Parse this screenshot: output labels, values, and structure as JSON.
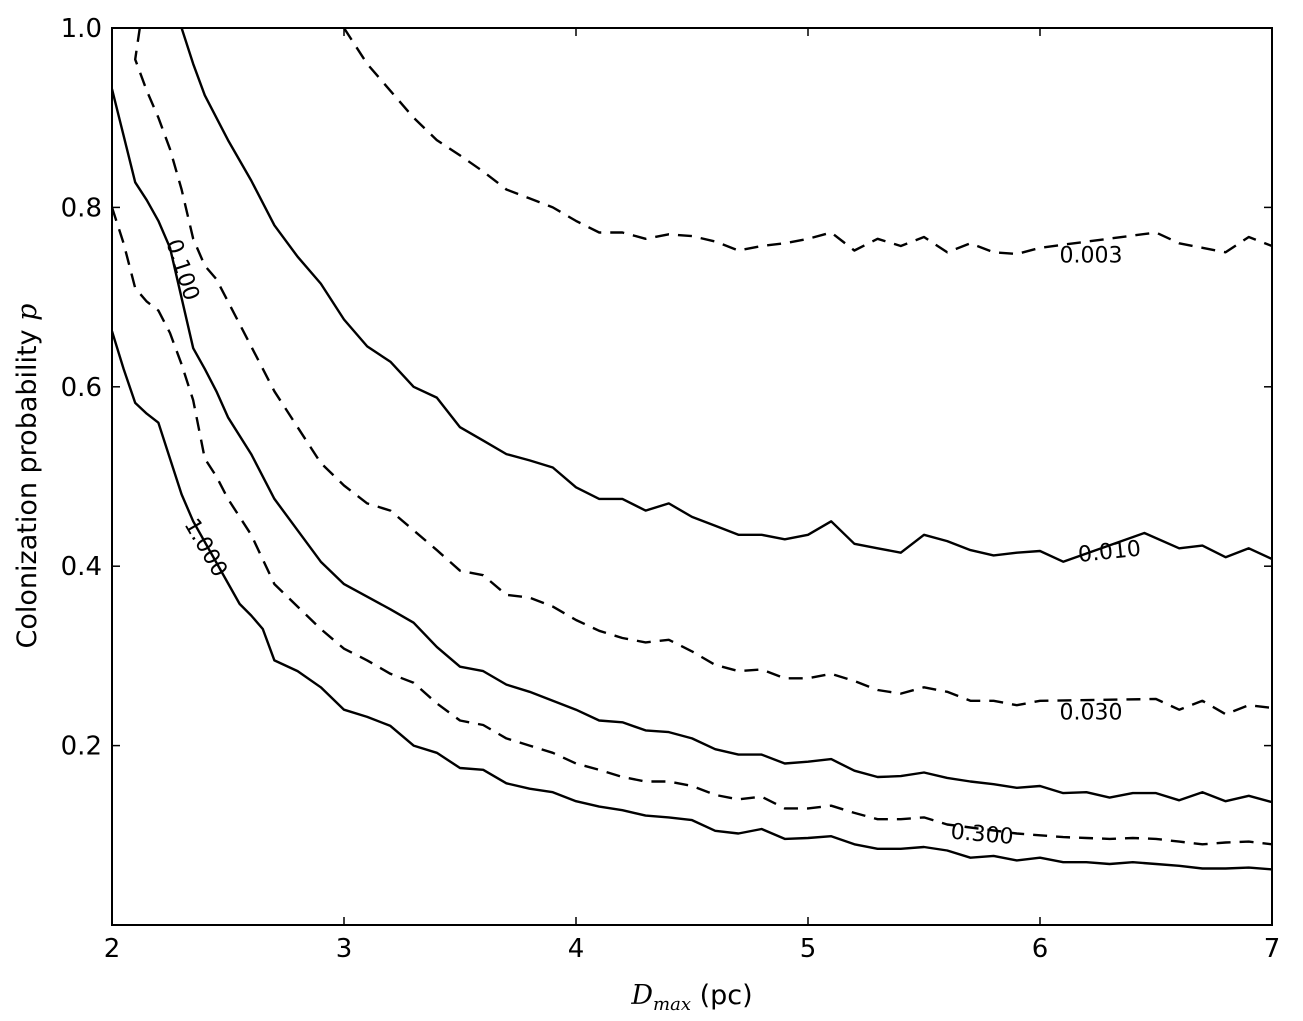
{
  "chart_data": {
    "type": "line",
    "title": "",
    "xlabel": "D_max (pc)",
    "xlabel_parts": {
      "symbol": "D",
      "subscript": "max",
      "unit": " (pc)"
    },
    "ylabel": "Colonization probability p",
    "ylabel_parts": {
      "text": "Colonization probability ",
      "symbol": "p"
    },
    "xlim": [
      2,
      7
    ],
    "ylim": [
      0.0,
      1.0
    ],
    "x_ticks": [
      2,
      3,
      4,
      5,
      6,
      7
    ],
    "x_tick_labels": [
      "2",
      "3",
      "4",
      "5",
      "6",
      "7"
    ],
    "y_ticks": [
      0.2,
      0.4,
      0.6,
      0.8,
      1.0
    ],
    "y_tick_labels": [
      "0.2",
      "0.4",
      "0.6",
      "0.8",
      "1.0"
    ],
    "grid": false,
    "series": [
      {
        "name": "0.003",
        "style": "dashed",
        "points": [
          [
            3.0,
            1.0
          ],
          [
            3.1,
            0.96
          ],
          [
            3.2,
            0.93
          ],
          [
            3.3,
            0.9
          ],
          [
            3.4,
            0.875
          ],
          [
            3.5,
            0.858
          ],
          [
            3.6,
            0.84
          ],
          [
            3.7,
            0.82
          ],
          [
            3.8,
            0.81
          ],
          [
            3.9,
            0.8
          ],
          [
            4.0,
            0.785
          ],
          [
            4.1,
            0.772
          ],
          [
            4.2,
            0.772
          ],
          [
            4.3,
            0.765
          ],
          [
            4.4,
            0.77
          ],
          [
            4.5,
            0.768
          ],
          [
            4.6,
            0.762
          ],
          [
            4.7,
            0.752
          ],
          [
            4.8,
            0.757
          ],
          [
            4.9,
            0.76
          ],
          [
            5.0,
            0.765
          ],
          [
            5.1,
            0.772
          ],
          [
            5.2,
            0.752
          ],
          [
            5.3,
            0.765
          ],
          [
            5.4,
            0.757
          ],
          [
            5.5,
            0.767
          ],
          [
            5.6,
            0.75
          ],
          [
            5.7,
            0.76
          ],
          [
            5.8,
            0.75
          ],
          [
            5.9,
            0.748
          ],
          [
            6.0,
            0.755
          ],
          [
            6.5,
            0.772
          ],
          [
            6.6,
            0.76
          ],
          [
            6.7,
            0.755
          ],
          [
            6.8,
            0.75
          ],
          [
            6.9,
            0.767
          ],
          [
            7.0,
            0.757
          ]
        ]
      },
      {
        "name": "0.010",
        "style": "solid",
        "points": [
          [
            2.3,
            1.0
          ],
          [
            2.35,
            0.96
          ],
          [
            2.4,
            0.925
          ],
          [
            2.5,
            0.875
          ],
          [
            2.6,
            0.83
          ],
          [
            2.7,
            0.78
          ],
          [
            2.8,
            0.745
          ],
          [
            2.9,
            0.715
          ],
          [
            3.0,
            0.675
          ],
          [
            3.1,
            0.645
          ],
          [
            3.2,
            0.628
          ],
          [
            3.3,
            0.6
          ],
          [
            3.4,
            0.588
          ],
          [
            3.5,
            0.555
          ],
          [
            3.6,
            0.54
          ],
          [
            3.7,
            0.525
          ],
          [
            3.8,
            0.518
          ],
          [
            3.9,
            0.51
          ],
          [
            4.0,
            0.488
          ],
          [
            4.1,
            0.475
          ],
          [
            4.2,
            0.475
          ],
          [
            4.3,
            0.462
          ],
          [
            4.4,
            0.47
          ],
          [
            4.5,
            0.455
          ],
          [
            4.6,
            0.445
          ],
          [
            4.7,
            0.435
          ],
          [
            4.8,
            0.435
          ],
          [
            4.9,
            0.43
          ],
          [
            5.0,
            0.435
          ],
          [
            5.1,
            0.45
          ],
          [
            5.2,
            0.425
          ],
          [
            5.3,
            0.42
          ],
          [
            5.4,
            0.415
          ],
          [
            5.5,
            0.435
          ],
          [
            5.6,
            0.428
          ],
          [
            5.7,
            0.418
          ],
          [
            5.8,
            0.412
          ],
          [
            5.9,
            0.415
          ],
          [
            6.0,
            0.417
          ],
          [
            6.1,
            0.405
          ],
          [
            6.45,
            0.437
          ],
          [
            6.6,
            0.42
          ],
          [
            6.7,
            0.423
          ],
          [
            6.8,
            0.41
          ],
          [
            6.9,
            0.42
          ],
          [
            7.0,
            0.408
          ]
        ]
      },
      {
        "name": "0.030",
        "style": "dashed",
        "points": [
          [
            2.12,
            1.0
          ],
          [
            2.1,
            0.965
          ],
          [
            2.15,
            0.93
          ],
          [
            2.2,
            0.9
          ],
          [
            2.25,
            0.865
          ],
          [
            2.3,
            0.82
          ],
          [
            2.35,
            0.765
          ],
          [
            2.4,
            0.735
          ],
          [
            2.45,
            0.72
          ],
          [
            2.5,
            0.695
          ],
          [
            2.6,
            0.645
          ],
          [
            2.7,
            0.595
          ],
          [
            2.8,
            0.555
          ],
          [
            2.9,
            0.515
          ],
          [
            3.0,
            0.49
          ],
          [
            3.1,
            0.47
          ],
          [
            3.2,
            0.462
          ],
          [
            3.3,
            0.44
          ],
          [
            3.4,
            0.418
          ],
          [
            3.5,
            0.395
          ],
          [
            3.6,
            0.39
          ],
          [
            3.7,
            0.368
          ],
          [
            3.8,
            0.365
          ],
          [
            3.9,
            0.355
          ],
          [
            4.0,
            0.34
          ],
          [
            4.1,
            0.328
          ],
          [
            4.2,
            0.32
          ],
          [
            4.3,
            0.315
          ],
          [
            4.4,
            0.318
          ],
          [
            4.5,
            0.305
          ],
          [
            4.6,
            0.29
          ],
          [
            4.7,
            0.283
          ],
          [
            4.8,
            0.285
          ],
          [
            4.9,
            0.275
          ],
          [
            5.0,
            0.275
          ],
          [
            5.1,
            0.28
          ],
          [
            5.2,
            0.272
          ],
          [
            5.3,
            0.262
          ],
          [
            5.4,
            0.258
          ],
          [
            5.5,
            0.265
          ],
          [
            5.6,
            0.26
          ],
          [
            5.7,
            0.25
          ],
          [
            5.8,
            0.25
          ],
          [
            5.9,
            0.245
          ],
          [
            6.0,
            0.25
          ],
          [
            6.5,
            0.252
          ],
          [
            6.6,
            0.24
          ],
          [
            6.7,
            0.25
          ],
          [
            6.8,
            0.235
          ],
          [
            6.9,
            0.245
          ],
          [
            7.0,
            0.242
          ]
        ]
      },
      {
        "name": "0.100",
        "style": "solid",
        "points": [
          [
            2.0,
            0.932
          ],
          [
            2.05,
            0.88
          ],
          [
            2.1,
            0.828
          ],
          [
            2.15,
            0.808
          ],
          [
            2.2,
            0.785
          ],
          [
            2.25,
            0.755
          ],
          [
            2.35,
            0.643
          ],
          [
            2.4,
            0.62
          ],
          [
            2.45,
            0.595
          ],
          [
            2.5,
            0.566
          ],
          [
            2.6,
            0.525
          ],
          [
            2.7,
            0.475
          ],
          [
            2.8,
            0.44
          ],
          [
            2.9,
            0.405
          ],
          [
            3.0,
            0.38
          ],
          [
            3.1,
            0.366
          ],
          [
            3.2,
            0.352
          ],
          [
            3.3,
            0.337
          ],
          [
            3.4,
            0.31
          ],
          [
            3.5,
            0.288
          ],
          [
            3.6,
            0.283
          ],
          [
            3.7,
            0.268
          ],
          [
            3.8,
            0.26
          ],
          [
            3.9,
            0.25
          ],
          [
            4.0,
            0.24
          ],
          [
            4.1,
            0.228
          ],
          [
            4.2,
            0.226
          ],
          [
            4.3,
            0.217
          ],
          [
            4.4,
            0.215
          ],
          [
            4.5,
            0.208
          ],
          [
            4.6,
            0.196
          ],
          [
            4.7,
            0.19
          ],
          [
            4.8,
            0.19
          ],
          [
            4.9,
            0.18
          ],
          [
            5.0,
            0.182
          ],
          [
            5.1,
            0.185
          ],
          [
            5.2,
            0.172
          ],
          [
            5.3,
            0.165
          ],
          [
            5.4,
            0.166
          ],
          [
            5.5,
            0.17
          ],
          [
            5.6,
            0.164
          ],
          [
            5.7,
            0.16
          ],
          [
            5.8,
            0.157
          ],
          [
            5.9,
            0.153
          ],
          [
            6.0,
            0.155
          ],
          [
            6.1,
            0.147
          ],
          [
            6.2,
            0.148
          ],
          [
            6.3,
            0.142
          ],
          [
            6.4,
            0.147
          ],
          [
            6.5,
            0.147
          ],
          [
            6.6,
            0.139
          ],
          [
            6.7,
            0.148
          ],
          [
            6.8,
            0.138
          ],
          [
            6.9,
            0.144
          ],
          [
            7.0,
            0.137
          ]
        ]
      },
      {
        "name": "0.300",
        "style": "dashed",
        "points": [
          [
            2.0,
            0.8
          ],
          [
            2.05,
            0.76
          ],
          [
            2.1,
            0.71
          ],
          [
            2.15,
            0.695
          ],
          [
            2.2,
            0.685
          ],
          [
            2.25,
            0.66
          ],
          [
            2.3,
            0.625
          ],
          [
            2.35,
            0.585
          ],
          [
            2.4,
            0.52
          ],
          [
            2.45,
            0.5
          ],
          [
            2.5,
            0.475
          ],
          [
            2.6,
            0.435
          ],
          [
            2.7,
            0.38
          ],
          [
            2.8,
            0.355
          ],
          [
            2.9,
            0.33
          ],
          [
            3.0,
            0.308
          ],
          [
            3.1,
            0.295
          ],
          [
            3.2,
            0.28
          ],
          [
            3.3,
            0.27
          ],
          [
            3.4,
            0.247
          ],
          [
            3.5,
            0.228
          ],
          [
            3.6,
            0.223
          ],
          [
            3.7,
            0.208
          ],
          [
            3.8,
            0.2
          ],
          [
            3.9,
            0.192
          ],
          [
            4.0,
            0.18
          ],
          [
            4.1,
            0.173
          ],
          [
            4.2,
            0.165
          ],
          [
            4.3,
            0.16
          ],
          [
            4.4,
            0.16
          ],
          [
            4.5,
            0.155
          ],
          [
            4.6,
            0.145
          ],
          [
            4.7,
            0.14
          ],
          [
            4.8,
            0.143
          ],
          [
            4.9,
            0.13
          ],
          [
            5.0,
            0.13
          ],
          [
            5.1,
            0.133
          ],
          [
            5.2,
            0.125
          ],
          [
            5.3,
            0.118
          ],
          [
            5.4,
            0.118
          ],
          [
            5.5,
            0.12
          ],
          [
            5.6,
            0.112
          ],
          [
            5.9,
            0.102
          ],
          [
            6.0,
            0.1
          ],
          [
            6.1,
            0.098
          ],
          [
            6.2,
            0.097
          ],
          [
            6.3,
            0.096
          ],
          [
            6.4,
            0.097
          ],
          [
            6.5,
            0.096
          ],
          [
            6.6,
            0.093
          ],
          [
            6.7,
            0.09
          ],
          [
            6.8,
            0.092
          ],
          [
            6.9,
            0.093
          ],
          [
            7.0,
            0.09
          ]
        ]
      },
      {
        "name": "1.000",
        "style": "solid",
        "points": [
          [
            2.0,
            0.662
          ],
          [
            2.05,
            0.62
          ],
          [
            2.1,
            0.582
          ],
          [
            2.15,
            0.57
          ],
          [
            2.2,
            0.56
          ],
          [
            2.25,
            0.52
          ],
          [
            2.3,
            0.48
          ],
          [
            2.35,
            0.45
          ],
          [
            2.55,
            0.358
          ],
          [
            2.6,
            0.345
          ],
          [
            2.65,
            0.33
          ],
          [
            2.7,
            0.295
          ],
          [
            2.8,
            0.283
          ],
          [
            2.9,
            0.265
          ],
          [
            3.0,
            0.24
          ],
          [
            3.1,
            0.232
          ],
          [
            3.2,
            0.222
          ],
          [
            3.3,
            0.2
          ],
          [
            3.4,
            0.192
          ],
          [
            3.5,
            0.175
          ],
          [
            3.6,
            0.173
          ],
          [
            3.7,
            0.158
          ],
          [
            3.8,
            0.152
          ],
          [
            3.9,
            0.148
          ],
          [
            4.0,
            0.138
          ],
          [
            4.1,
            0.132
          ],
          [
            4.2,
            0.128
          ],
          [
            4.3,
            0.122
          ],
          [
            4.4,
            0.12
          ],
          [
            4.5,
            0.117
          ],
          [
            4.6,
            0.105
          ],
          [
            4.7,
            0.102
          ],
          [
            4.8,
            0.107
          ],
          [
            4.9,
            0.096
          ],
          [
            5.0,
            0.097
          ],
          [
            5.1,
            0.099
          ],
          [
            5.2,
            0.09
          ],
          [
            5.3,
            0.085
          ],
          [
            5.4,
            0.085
          ],
          [
            5.5,
            0.087
          ],
          [
            5.6,
            0.083
          ],
          [
            5.7,
            0.075
          ],
          [
            5.8,
            0.077
          ],
          [
            5.9,
            0.072
          ],
          [
            6.0,
            0.075
          ],
          [
            6.1,
            0.07
          ],
          [
            6.2,
            0.07
          ],
          [
            6.3,
            0.068
          ],
          [
            6.4,
            0.07
          ],
          [
            6.5,
            0.068
          ],
          [
            6.6,
            0.066
          ],
          [
            6.7,
            0.063
          ],
          [
            6.8,
            0.063
          ],
          [
            6.9,
            0.064
          ],
          [
            7.0,
            0.062
          ]
        ]
      }
    ],
    "annotations": [
      {
        "text": "0.003",
        "x": 6.22,
        "y": 0.745,
        "angle": 0
      },
      {
        "text": "0.010",
        "x": 6.3,
        "y": 0.415,
        "angle": -6
      },
      {
        "text": "0.030",
        "x": 6.22,
        "y": 0.236,
        "angle": 0
      },
      {
        "text": "0.100",
        "x": 2.3,
        "y": 0.73,
        "angle": 72
      },
      {
        "text": "0.300",
        "x": 5.75,
        "y": 0.1,
        "angle": 5
      },
      {
        "text": "1.000",
        "x": 2.4,
        "y": 0.42,
        "angle": 60
      }
    ]
  }
}
